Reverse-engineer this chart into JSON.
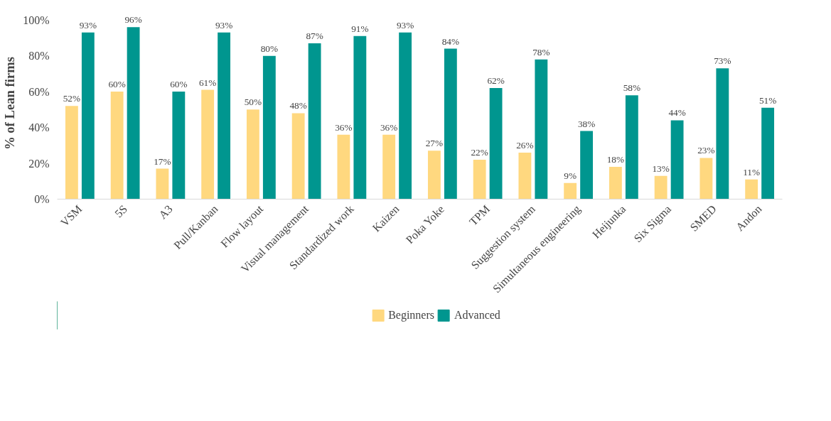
{
  "chart_data": {
    "type": "bar",
    "ylabel": "% of Lean firms",
    "categories": [
      "VSM",
      "5S",
      "A3",
      "Pull/Kanban",
      "Flow layout",
      "Visual management",
      "Standardized work",
      "Kaizen",
      "Poka Yoke",
      "TPM",
      "Suggestion system",
      "Simultaneous engineering",
      "Heijunka",
      "Six Sigma",
      "SMED",
      "Andon"
    ],
    "series": [
      {
        "name": "Beginners",
        "color": "#ffd87f",
        "values": [
          52,
          60,
          17,
          61,
          50,
          48,
          36,
          36,
          27,
          22,
          26,
          9,
          18,
          13,
          23,
          11
        ],
        "value_labels": [
          "52%",
          "60%",
          "17%",
          "61%",
          "50%",
          "48%",
          "36%",
          "36%",
          "27%",
          "22%",
          "26%",
          "9%",
          "18%",
          "13%",
          "23%",
          "11%"
        ]
      },
      {
        "name": "Advanced",
        "color": "#00968f",
        "values": [
          93,
          96,
          60,
          93,
          80,
          87,
          91,
          93,
          84,
          62,
          78,
          38,
          58,
          44,
          73,
          51
        ],
        "value_labels": [
          "93%",
          "96%",
          "60%",
          "93%",
          "80%",
          "87%",
          "91%",
          "93%",
          "84%",
          "62%",
          "78%",
          "38%",
          "58%",
          "44%",
          "73%",
          "51%"
        ]
      }
    ],
    "ylim": [
      0,
      100
    ],
    "yticks": [
      {
        "value": 0,
        "label": "0%"
      },
      {
        "value": 20,
        "label": "20%"
      },
      {
        "value": 40,
        "label": "40%"
      },
      {
        "value": 60,
        "label": "60%"
      },
      {
        "value": 80,
        "label": "80%"
      },
      {
        "value": 100,
        "label": "100%"
      }
    ],
    "grid": false,
    "legend": "bottom"
  }
}
